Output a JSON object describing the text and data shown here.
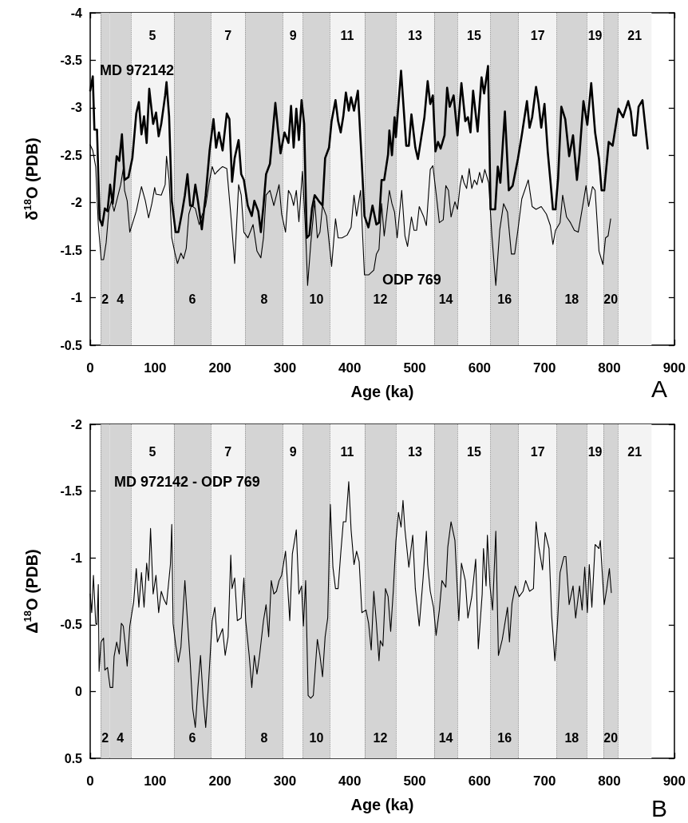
{
  "chart_data": [
    {
      "type": "line",
      "xlabel": "Age (ka)",
      "ylabel": "δ$^{18}$O (PDB)",
      "xlim": [
        0,
        900
      ],
      "xticks": [
        0,
        {
          "value": 50,
          "label": null
        },
        100,
        {
          "value": 150,
          "label": null
        },
        200,
        {
          "value": 250,
          "label": null
        },
        300,
        {
          "value": 350,
          "label": null
        },
        400,
        {
          "value": 450,
          "label": null
        },
        500,
        {
          "value": 550,
          "label": null
        },
        600,
        {
          "value": 650,
          "label": null
        },
        700,
        {
          "value": 750,
          "label": null
        },
        800,
        {
          "value": 850,
          "label": null
        },
        900
      ],
      "ylim": [
        -0.5,
        -4
      ],
      "yticks": [
        -4,
        -3.5,
        -3,
        -2.5,
        -2,
        -1.5,
        -1,
        -0.5
      ],
      "series": [
        {
          "name": "MD 972142",
          "color": "#000000",
          "x": [
            0,
            4,
            6.5,
            10.5,
            14.5,
            18.6,
            22.6,
            26.7,
            30.7,
            34.7,
            40.8,
            44.8,
            48.9,
            52.9,
            59,
            65,
            71,
            75,
            79,
            83,
            87,
            91,
            97,
            101.5,
            105.5,
            109.5,
            115.5,
            117.6,
            121.6,
            125.7,
            131.7,
            135.8,
            141.8,
            145.9,
            149.9,
            154,
            158,
            162,
            166,
            172,
            178,
            184,
            190,
            194,
            198.4,
            204,
            210.5,
            214.5,
            218.6,
            222.6,
            228.7,
            232.7,
            236.8,
            242.8,
            249,
            253,
            259,
            263,
            267,
            271,
            277,
            281,
            285.3,
            289.3,
            293.3,
            299.4,
            305.5,
            309.5,
            313.5,
            317.6,
            321.6,
            325.7,
            329.7,
            333.7,
            337.8,
            341.8,
            345.9,
            352,
            358,
            362,
            368,
            372,
            378,
            382,
            386,
            390,
            394,
            398.4,
            402,
            406.5,
            412.5,
            418.6,
            422.6,
            428.7,
            435,
            441,
            445,
            449,
            453,
            459,
            461,
            465,
            469,
            471,
            479,
            487,
            491,
            495,
            501,
            505,
            510,
            515,
            520,
            524,
            528,
            532,
            536,
            540,
            546,
            550,
            554,
            560,
            566,
            572,
            578,
            582,
            586,
            590,
            597,
            603,
            607,
            613,
            617,
            624,
            628,
            632,
            639,
            645,
            651,
            659,
            665,
            673,
            677,
            681,
            687,
            691,
            695,
            700,
            705,
            709,
            713,
            717,
            721,
            726,
            732,
            738,
            744,
            750,
            754,
            760,
            766,
            772,
            778,
            784,
            788,
            792,
            799,
            805,
            814,
            821,
            829,
            833,
            837,
            841,
            845,
            851,
            859
          ],
          "values": [
            -3.18,
            -3.33,
            -2.77,
            -2.77,
            -1.83,
            -1.76,
            -1.94,
            -1.91,
            -2.19,
            -1.99,
            -2.49,
            -2.44,
            -2.72,
            -2.24,
            -2.27,
            -2.47,
            -2.94,
            -3.06,
            -2.72,
            -2.91,
            -2.63,
            -3.2,
            -2.83,
            -2.95,
            -2.7,
            -2.83,
            -3.13,
            -3.27,
            -2.91,
            -2.02,
            -1.69,
            -1.69,
            -1.91,
            -2.08,
            -2.3,
            -1.97,
            -1.97,
            -2.19,
            -2.02,
            -1.72,
            -2.08,
            -2.55,
            -2.88,
            -2.58,
            -2.74,
            -2.55,
            -2.94,
            -2.88,
            -2.22,
            -2.47,
            -2.66,
            -2.3,
            -2.24,
            -1.97,
            -1.86,
            -2.02,
            -1.91,
            -1.69,
            -1.97,
            -2.3,
            -2.41,
            -2.72,
            -3.05,
            -2.77,
            -2.52,
            -2.74,
            -2.63,
            -3.02,
            -2.58,
            -2.99,
            -2.66,
            -3.08,
            -2.83,
            -1.63,
            -1.66,
            -1.94,
            -2.08,
            -2.02,
            -1.97,
            -2.47,
            -2.58,
            -2.86,
            -3.08,
            -2.86,
            -2.74,
            -2.91,
            -3.16,
            -2.97,
            -3.11,
            -2.97,
            -3.18,
            -2.41,
            -1.86,
            -1.74,
            -1.97,
            -1.77,
            -1.79,
            -2.24,
            -2.24,
            -2.51,
            -2.76,
            -2.5,
            -2.9,
            -2.69,
            -3.39,
            -2.6,
            -2.6,
            -2.93,
            -2.58,
            -2.46,
            -2.68,
            -2.9,
            -3.28,
            -3.04,
            -3.13,
            -2.54,
            -2.64,
            -2.57,
            -2.71,
            -3.21,
            -3.01,
            -3.13,
            -2.71,
            -3.26,
            -2.86,
            -2.9,
            -2.74,
            -3.18,
            -2.75,
            -3.32,
            -3.15,
            -3.44,
            -1.93,
            -1.93,
            -2.38,
            -2.21,
            -2.96,
            -2.13,
            -2.18,
            -2.46,
            -2.71,
            -3.07,
            -2.79,
            -2.9,
            -3.22,
            -3.04,
            -2.79,
            -3.04,
            -2.54,
            -2.24,
            -1.93,
            -1.93,
            -2.26,
            -3.01,
            -2.88,
            -2.49,
            -2.71,
            -2.24,
            -2.51,
            -3.07,
            -2.82,
            -3.26,
            -2.74,
            -2.46,
            -2.13,
            -2.13,
            -2.64,
            -2.6,
            -2.99,
            -2.9,
            -3.07,
            -2.96,
            -2.71,
            -2.71,
            -3.01,
            -3.08,
            -2.57
          ]
        },
        {
          "name": "ODP 769",
          "color": "#000000",
          "x": [
            0,
            4,
            8.5,
            12.5,
            17,
            20.6,
            24.6,
            28.7,
            32.7,
            36.8,
            43,
            47,
            51,
            53,
            57,
            61,
            71,
            79,
            85,
            90,
            95,
            99.4,
            101.4,
            109.5,
            115.5,
            117.6,
            121.6,
            125.7,
            130.5,
            134.5,
            139.8,
            143.8,
            148,
            152,
            156,
            162,
            168,
            172,
            178,
            184,
            188,
            192,
            196,
            200.4,
            204,
            210.5,
            216.6,
            222.6,
            228.7,
            232.7,
            236.8,
            243,
            251,
            257,
            263,
            267,
            271,
            277,
            283,
            287,
            291,
            295,
            301,
            305.5,
            309.5,
            313.5,
            317.6,
            321.6,
            327,
            332,
            335,
            340,
            346,
            350,
            354,
            358,
            364,
            372,
            378,
            382,
            388,
            396,
            402,
            406.5,
            410.5,
            416.6,
            422.6,
            429,
            437,
            441,
            445,
            449,
            453,
            457,
            461,
            465,
            469,
            473,
            480,
            485,
            489,
            495,
            499,
            503,
            507,
            514,
            518,
            524,
            528,
            534,
            538,
            544,
            548,
            552,
            556,
            562,
            566,
            570,
            573,
            576,
            580,
            584,
            588,
            592,
            596,
            600,
            604,
            608,
            614,
            619,
            625,
            631,
            637,
            643,
            649,
            654,
            659,
            665,
            675,
            681,
            687,
            695,
            703,
            709,
            713,
            717,
            724,
            728,
            734,
            740,
            746,
            752,
            758,
            764,
            768,
            774,
            778,
            784,
            790,
            794,
            798,
            802
          ],
          "values": [
            -2.61,
            -2.55,
            -2.38,
            -1.77,
            -1.4,
            -1.4,
            -1.58,
            -1.91,
            -2.02,
            -1.91,
            -2.08,
            -2.19,
            -2.36,
            -2.13,
            -2.02,
            -1.69,
            -1.91,
            -2.17,
            -2.02,
            -1.84,
            -1.99,
            -2.16,
            -2.09,
            -2.08,
            -2.19,
            -2.49,
            -2.24,
            -1.63,
            -1.47,
            -1.36,
            -1.47,
            -1.41,
            -1.52,
            -1.88,
            -1.97,
            -1.94,
            -1.77,
            -1.86,
            -1.97,
            -2.24,
            -2.38,
            -2.3,
            -2.33,
            -2.36,
            -2.38,
            -2.36,
            -1.88,
            -1.36,
            -2.19,
            -2.08,
            -1.69,
            -1.63,
            -1.77,
            -1.49,
            -1.42,
            -1.63,
            -2.08,
            -2.13,
            -1.97,
            -2.08,
            -2.19,
            -1.88,
            -1.69,
            -2.13,
            -2.08,
            -1.97,
            -2.13,
            -1.8,
            -2.33,
            -1.69,
            -1.13,
            -1.58,
            -2.02,
            -1.63,
            -1.69,
            -1.97,
            -1.86,
            -1.33,
            -1.83,
            -1.63,
            -1.63,
            -1.66,
            -1.74,
            -2.08,
            -1.86,
            -2.13,
            -1.24,
            -1.24,
            -1.29,
            -1.46,
            -1.51,
            -1.99,
            -1.65,
            -1.88,
            -2.13,
            -1.99,
            -1.9,
            -1.63,
            -2.13,
            -1.65,
            -1.54,
            -1.85,
            -1.71,
            -1.71,
            -1.96,
            -1.85,
            -1.76,
            -2.35,
            -2.39,
            -2.04,
            -1.79,
            -1.82,
            -2.18,
            -2.13,
            -1.85,
            -2.01,
            -1.93,
            -2.18,
            -2.29,
            -2.21,
            -2.15,
            -2.36,
            -2.15,
            -2.24,
            -2.19,
            -2.32,
            -2.21,
            -2.35,
            -2.21,
            -1.65,
            -1.13,
            -1.71,
            -1.99,
            -1.9,
            -1.46,
            -1.46,
            -1.71,
            -2.04,
            -2.24,
            -1.96,
            -1.93,
            -1.96,
            -1.88,
            -1.76,
            -1.56,
            -1.71,
            -1.79,
            -2.08,
            -1.85,
            -1.79,
            -1.71,
            -1.69,
            -1.93,
            -2.18,
            -1.96,
            -2.17,
            -2.13,
            -1.49,
            -1.35,
            -1.63,
            -1.65,
            -1.83
          ]
        }
      ],
      "bands": [
        {
          "axis": "x",
          "from": 16,
          "to": 30,
          "color": "#d4d4d4",
          "label": "2"
        },
        {
          "axis": "x",
          "from": 30,
          "to": 63,
          "color": "#d4d4d4",
          "label": "4"
        },
        {
          "axis": "x",
          "from": 63,
          "to": 129,
          "color": "#f3f3f3",
          "label": "5"
        },
        {
          "axis": "x",
          "from": 129,
          "to": 186,
          "color": "#d4d4d4",
          "label": "6"
        },
        {
          "axis": "x",
          "from": 186,
          "to": 239,
          "color": "#f3f3f3",
          "label": "7"
        },
        {
          "axis": "x",
          "from": 239,
          "to": 297,
          "color": "#d4d4d4",
          "label": "8"
        },
        {
          "axis": "x",
          "from": 297,
          "to": 328,
          "color": "#f3f3f3",
          "label": "9"
        },
        {
          "axis": "x",
          "from": 328,
          "to": 369,
          "color": "#d4d4d4",
          "label": "10"
        },
        {
          "axis": "x",
          "from": 369,
          "to": 423,
          "color": "#f3f3f3",
          "label": "11"
        },
        {
          "axis": "x",
          "from": 423,
          "to": 471,
          "color": "#d4d4d4",
          "label": "12"
        },
        {
          "axis": "x",
          "from": 471,
          "to": 530,
          "color": "#f3f3f3",
          "label": "13"
        },
        {
          "axis": "x",
          "from": 530,
          "to": 566,
          "color": "#d4d4d4",
          "label": "14"
        },
        {
          "axis": "x",
          "from": 566,
          "to": 617,
          "color": "#f3f3f3",
          "label": "15"
        },
        {
          "axis": "x",
          "from": 617,
          "to": 660,
          "color": "#d4d4d4",
          "label": "16"
        },
        {
          "axis": "x",
          "from": 660,
          "to": 719,
          "color": "#f3f3f3",
          "label": "17"
        },
        {
          "axis": "x",
          "from": 719,
          "to": 765,
          "color": "#d4d4d4",
          "label": "18"
        },
        {
          "axis": "x",
          "from": 765,
          "to": 791,
          "color": "#f3f3f3",
          "label": "19"
        },
        {
          "axis": "x",
          "from": 791,
          "to": 813,
          "color": "#d4d4d4",
          "label": "20"
        },
        {
          "axis": "x",
          "from": 813,
          "to": 865,
          "color": "#f3f3f3",
          "label": "21"
        }
      ],
      "annotations": [
        "A"
      ]
    },
    {
      "type": "line",
      "xlabel": "Age (ka)",
      "ylabel": "Δ$^{18}$O (PDB)",
      "xlim": [
        0,
        900
      ],
      "xticks": [
        0,
        {
          "value": 50,
          "label": null
        },
        100,
        {
          "value": 150,
          "label": null
        },
        200,
        {
          "value": 250,
          "label": null
        },
        300,
        {
          "value": 350,
          "label": null
        },
        400,
        {
          "value": 450,
          "label": null
        },
        500,
        {
          "value": 550,
          "label": null
        },
        600,
        {
          "value": 650,
          "label": null
        },
        700,
        {
          "value": 750,
          "label": null
        },
        800,
        {
          "value": 850,
          "label": null
        },
        900
      ],
      "ylim": [
        0.5,
        -2
      ],
      "yticks": [
        -2,
        -1.5,
        -1,
        -0.5,
        0,
        0.5
      ],
      "series": [
        {
          "name": "MD 972142 - ODP 769",
          "color": "#000000",
          "x": [
            0,
            2.4,
            5,
            8.5,
            10.5,
            12.5,
            13.7,
            16.6,
            20.6,
            22.6,
            26.7,
            30.7,
            34.7,
            36.8,
            40.8,
            44.8,
            48,
            51,
            54,
            57,
            61,
            67,
            71,
            75,
            79,
            83,
            87,
            90,
            93,
            97,
            101.4,
            105.5,
            109.5,
            113.5,
            117.6,
            123.6,
            125.7,
            127.7,
            131.7,
            135.8,
            139.8,
            145.9,
            149.9,
            154,
            158,
            162,
            166,
            170,
            174,
            178,
            182,
            188,
            192,
            196,
            204,
            208,
            212.5,
            216.6,
            218.6,
            222.6,
            226.7,
            232.7,
            236.8,
            239.6,
            245,
            249,
            253,
            257,
            261,
            267,
            271,
            275,
            279,
            283,
            287,
            291,
            295,
            301,
            307.5,
            311.5,
            317.6,
            321.6,
            325.7,
            328.5,
            332,
            335.8,
            339.8,
            343.8,
            350,
            354,
            358,
            362,
            366,
            370,
            374,
            378,
            382,
            386,
            390,
            394,
            398.4,
            402,
            406.5,
            410.5,
            414.5,
            418.6,
            425,
            429,
            433,
            437,
            441,
            445,
            447,
            451,
            455,
            459,
            463,
            467,
            471,
            475,
            479,
            482,
            485,
            491,
            497,
            501,
            507,
            513,
            518,
            520,
            524,
            529,
            533,
            538,
            542,
            548,
            551,
            556,
            562,
            568,
            572,
            578,
            582,
            588,
            594,
            598,
            604,
            606,
            610,
            612,
            616,
            620,
            625,
            629,
            635,
            639,
            643,
            646,
            650,
            655,
            661,
            667,
            671,
            677,
            683,
            687,
            691,
            697,
            701,
            707,
            711,
            716,
            720,
            724,
            730,
            733,
            738,
            744,
            748,
            754,
            758,
            762,
            766,
            769,
            773,
            778,
            784,
            786,
            792,
            796,
            800,
            803
          ],
          "values": [
            -0.73,
            -0.59,
            -0.87,
            -0.51,
            -0.5,
            -0.8,
            -0.15,
            -0.37,
            -0.4,
            -0.16,
            -0.18,
            -0.03,
            -0.03,
            -0.26,
            -0.37,
            -0.28,
            -0.51,
            -0.49,
            -0.35,
            -0.19,
            -0.49,
            -0.67,
            -0.92,
            -0.63,
            -0.89,
            -0.63,
            -0.96,
            -0.83,
            -1.22,
            -0.73,
            -0.87,
            -0.59,
            -0.75,
            -0.69,
            -0.65,
            -0.95,
            -1.25,
            -0.51,
            -0.35,
            -0.22,
            -0.33,
            -0.83,
            -0.53,
            -0.23,
            0.13,
            0.27,
            -0.03,
            -0.27,
            0.05,
            0.27,
            -0.03,
            -0.53,
            -0.63,
            -0.37,
            -0.47,
            -0.27,
            -0.41,
            -1.02,
            -0.77,
            -0.85,
            -0.53,
            -0.55,
            -0.85,
            -0.53,
            -0.27,
            -0.03,
            -0.27,
            -0.13,
            -0.27,
            -0.53,
            -0.65,
            -0.41,
            -0.83,
            -0.73,
            -0.75,
            -0.83,
            -0.87,
            -1.05,
            -0.53,
            -1.03,
            -1.21,
            -0.73,
            -0.79,
            -0.49,
            -0.83,
            0.03,
            0.05,
            0.03,
            -0.39,
            -0.27,
            -0.11,
            -0.41,
            -0.55,
            -1.4,
            -0.93,
            -0.77,
            -0.77,
            -1.03,
            -1.27,
            -1.27,
            -1.57,
            -1.21,
            -0.95,
            -1.05,
            -0.97,
            -0.59,
            -0.61,
            -0.51,
            -0.31,
            -0.75,
            -0.51,
            -0.23,
            -0.38,
            -0.34,
            -0.77,
            -0.71,
            -0.45,
            -0.75,
            -1.12,
            -1.34,
            -1.23,
            -1.43,
            -1.21,
            -0.93,
            -1.17,
            -0.77,
            -0.49,
            -0.85,
            -1.2,
            -0.95,
            -0.75,
            -0.63,
            -0.42,
            -0.61,
            -0.83,
            -0.78,
            -1.08,
            -1.27,
            -1.13,
            -0.53,
            -0.96,
            -0.83,
            -0.55,
            -0.71,
            -0.99,
            -0.32,
            -0.73,
            -1.07,
            -0.79,
            -1.17,
            -0.79,
            -0.61,
            -1.2,
            -0.27,
            -0.39,
            -0.51,
            -0.63,
            -0.37,
            -0.66,
            -0.79,
            -0.71,
            -0.75,
            -0.83,
            -0.75,
            -0.77,
            -1.27,
            -1.09,
            -0.91,
            -1.19,
            -1.07,
            -0.57,
            -0.23,
            -0.51,
            -0.89,
            -1.01,
            -1.01,
            -0.65,
            -0.79,
            -0.55,
            -0.79,
            -0.61,
            -0.93,
            -0.59,
            -0.95,
            -0.63,
            -1.1,
            -1.07,
            -1.13,
            -0.65,
            -0.77,
            -0.92,
            -0.74
          ]
        }
      ],
      "bands": [
        {
          "axis": "x",
          "from": 16,
          "to": 30,
          "color": "#d4d4d4",
          "label": "2"
        },
        {
          "axis": "x",
          "from": 30,
          "to": 63,
          "color": "#d4d4d4",
          "label": "4"
        },
        {
          "axis": "x",
          "from": 63,
          "to": 129,
          "color": "#f3f3f3",
          "label": "5"
        },
        {
          "axis": "x",
          "from": 129,
          "to": 186,
          "color": "#d4d4d4",
          "label": "6"
        },
        {
          "axis": "x",
          "from": 186,
          "to": 239,
          "color": "#f3f3f3",
          "label": "7"
        },
        {
          "axis": "x",
          "from": 239,
          "to": 297,
          "color": "#d4d4d4",
          "label": "8"
        },
        {
          "axis": "x",
          "from": 297,
          "to": 328,
          "color": "#f3f3f3",
          "label": "9"
        },
        {
          "axis": "x",
          "from": 328,
          "to": 369,
          "color": "#d4d4d4",
          "label": "10"
        },
        {
          "axis": "x",
          "from": 369,
          "to": 423,
          "color": "#f3f3f3",
          "label": "11"
        },
        {
          "axis": "x",
          "from": 423,
          "to": 471,
          "color": "#d4d4d4",
          "label": "12"
        },
        {
          "axis": "x",
          "from": 471,
          "to": 530,
          "color": "#f3f3f3",
          "label": "13"
        },
        {
          "axis": "x",
          "from": 530,
          "to": 566,
          "color": "#d4d4d4",
          "label": "14"
        },
        {
          "axis": "x",
          "from": 566,
          "to": 617,
          "color": "#f3f3f3",
          "label": "15"
        },
        {
          "axis": "x",
          "from": 617,
          "to": 660,
          "color": "#d4d4d4",
          "label": "16"
        },
        {
          "axis": "x",
          "from": 660,
          "to": 719,
          "color": "#f3f3f3",
          "label": "17"
        },
        {
          "axis": "x",
          "from": 719,
          "to": 765,
          "color": "#d4d4d4",
          "label": "18"
        },
        {
          "axis": "x",
          "from": 765,
          "to": 791,
          "color": "#f3f3f3",
          "label": "19"
        },
        {
          "axis": "x",
          "from": 791,
          "to": 813,
          "color": "#d4d4d4",
          "label": "20"
        },
        {
          "axis": "x",
          "from": 813,
          "to": 865,
          "color": "#f3f3f3",
          "label": "21"
        }
      ],
      "annotations": [
        "B"
      ]
    }
  ]
}
